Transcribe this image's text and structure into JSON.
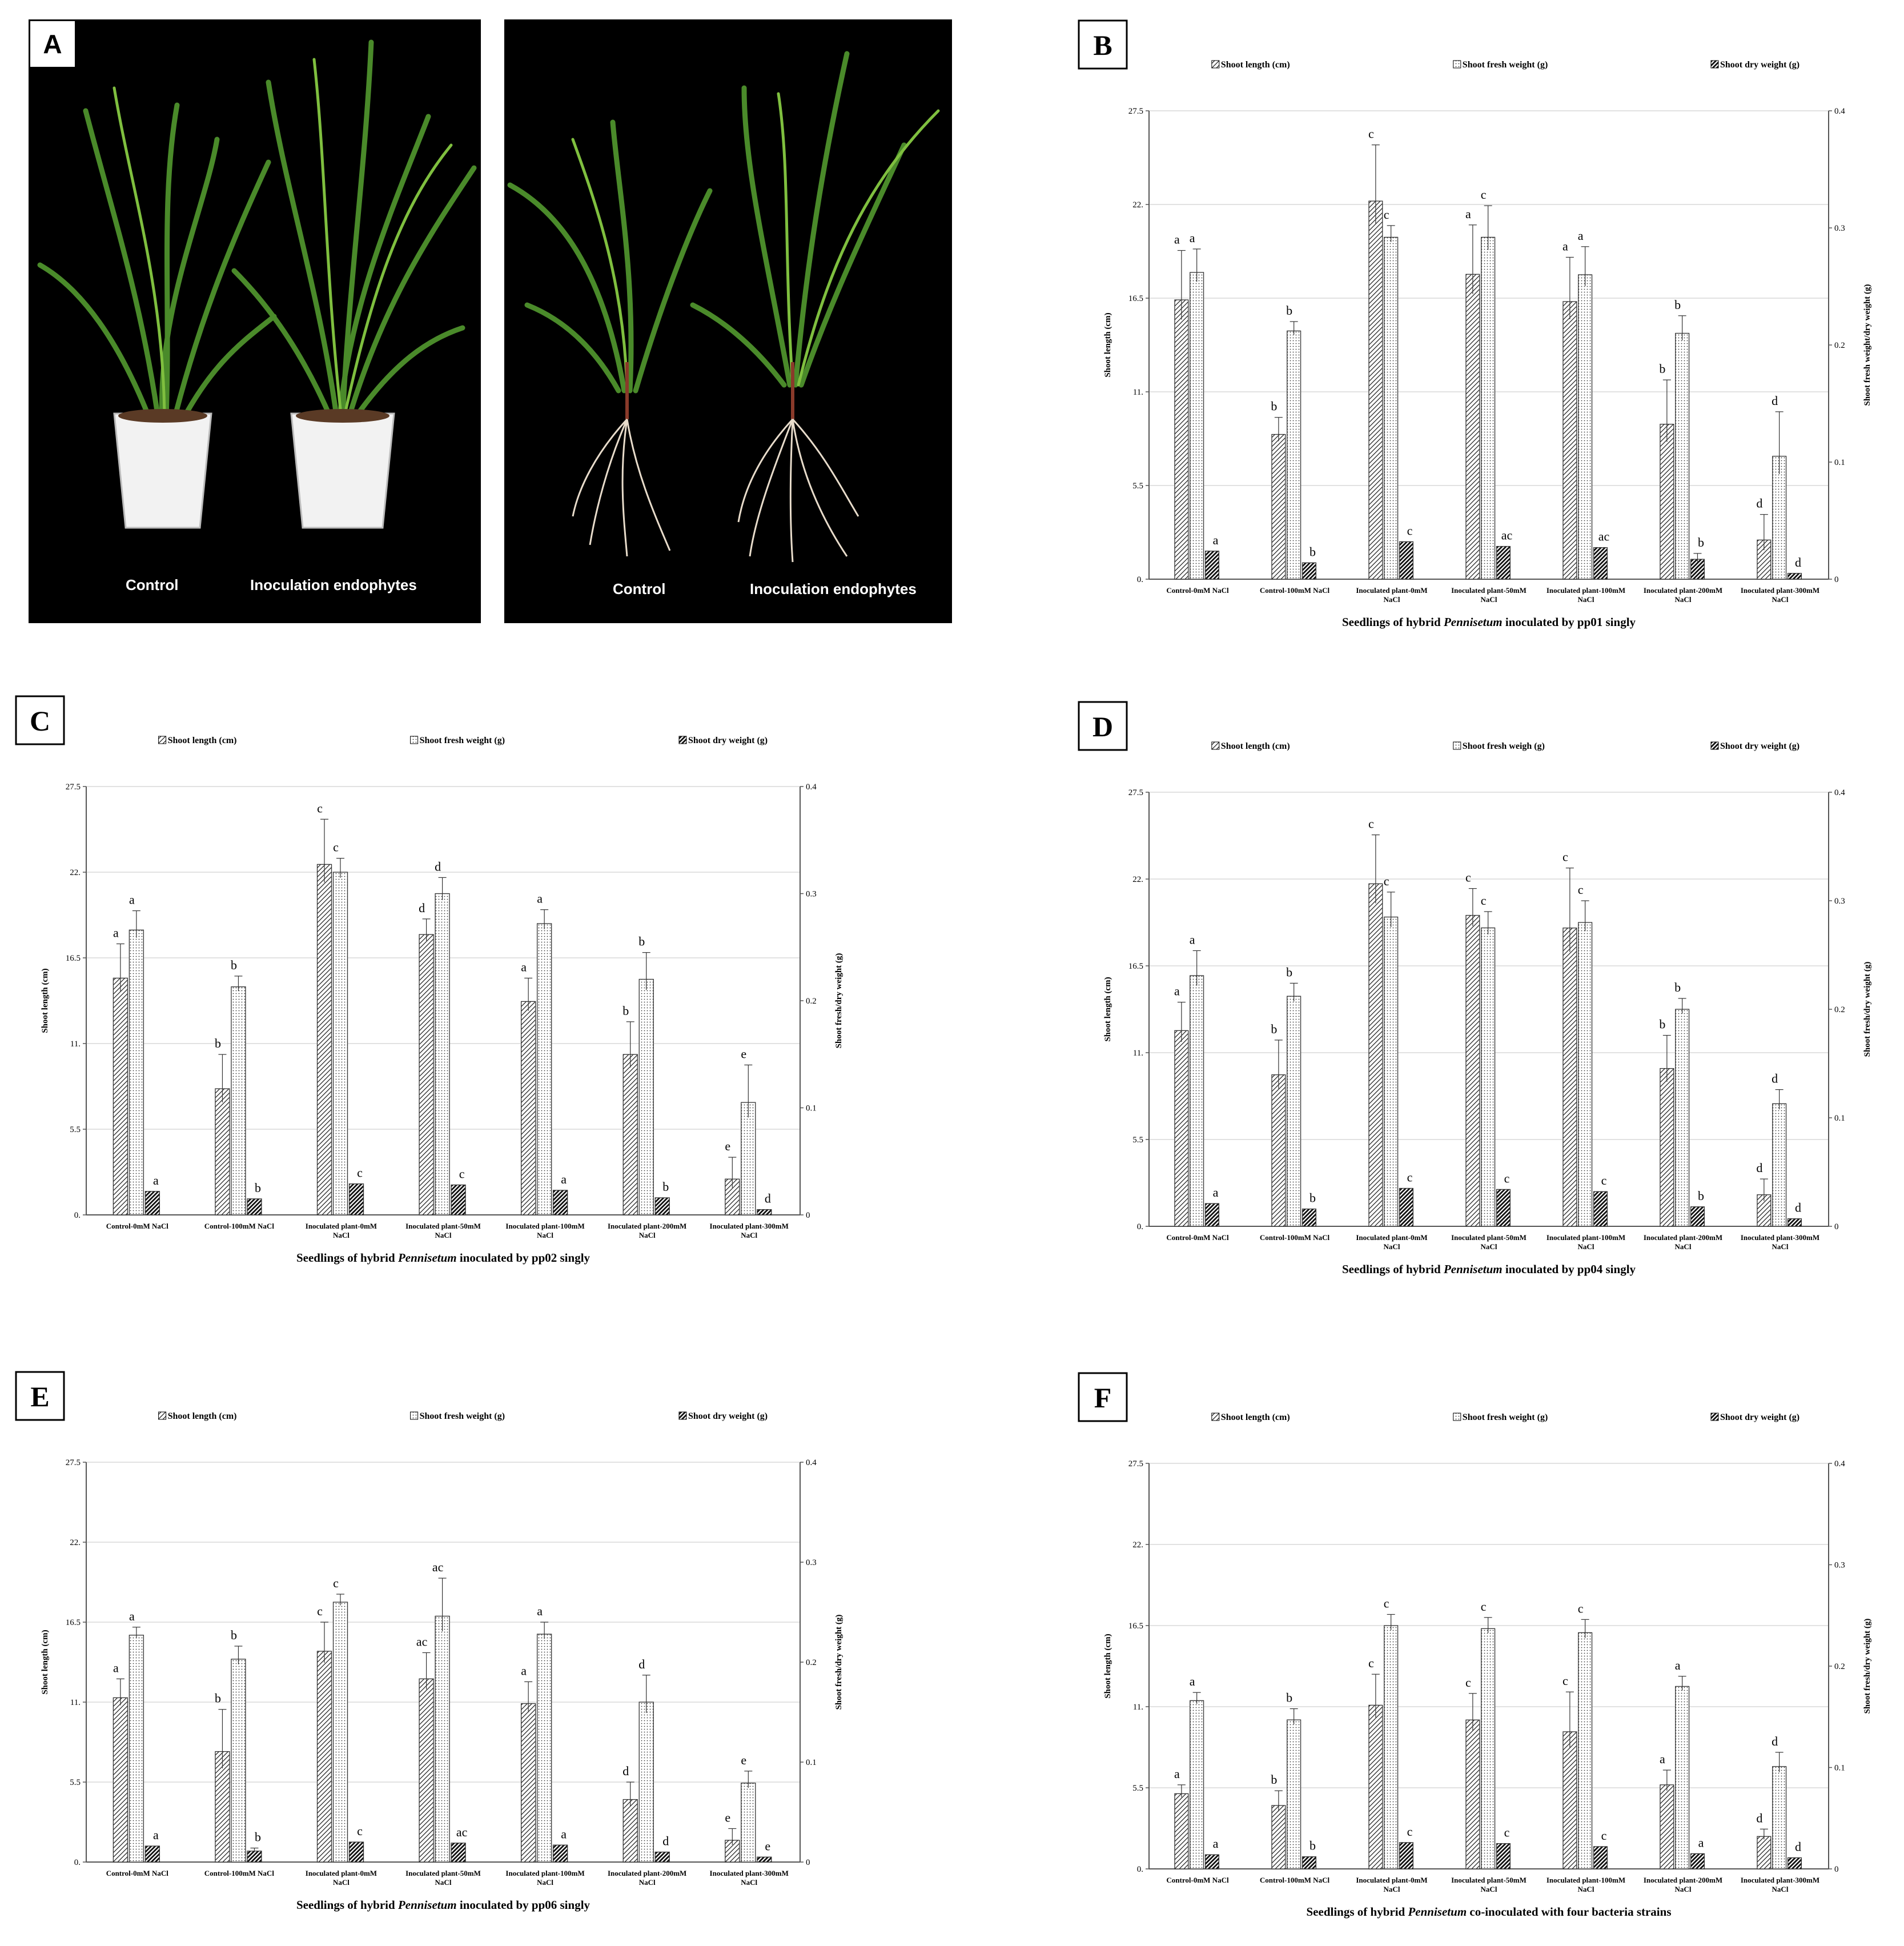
{
  "panel_a": {
    "letter": "A",
    "photo1": {
      "label_left": "Control",
      "label_right": "Inoculation endophytes"
    },
    "photo2": {
      "label_left": "Control",
      "label_right": "Inoculation endophytes"
    }
  },
  "colors": {
    "grid": "#d9d9d9",
    "axis": "#555555",
    "bar_stroke": "#333333",
    "photo_bg": "#000000"
  },
  "chart_data": [
    {
      "panel": "B",
      "type": "bar",
      "legend": [
        "Shoot length (cm)",
        "Shoot fresh weight (g)",
        "Shoot dry weight (g)"
      ],
      "categories": [
        "Control-0mM NaCl",
        "Control-100mM NaCl",
        "Inoculated plant-0mM NaCl",
        "Inoculated plant-50mM NaCl",
        "Inoculated plant-100mM NaCl",
        "Inoculated plant-200mM NaCl",
        "Inoculated plant-300mM NaCl"
      ],
      "ylabel": "Shoot length (cm)",
      "y2label": "Shoot fresh weight/dry weight (g)",
      "yticks": [
        "0.",
        "5.5",
        "11.",
        "16.5",
        "22.",
        "27.5"
      ],
      "y2ticks": [
        "0",
        "0.1",
        "0.2",
        "0.3",
        "0.4"
      ],
      "ylim": [
        0,
        27.5
      ],
      "y2lim": [
        0,
        0.4
      ],
      "xlabel_pre": "Seedlings of hybrid ",
      "xlabel_italic": "Pennisetum",
      "xlabel_post": " inoculated by pp01 singly",
      "series": [
        {
          "name": "Shoot length (cm)",
          "axis": "left",
          "pattern": "diag",
          "values": [
            16.4,
            8.5,
            22.2,
            17.9,
            16.3,
            9.1,
            2.3
          ],
          "errors": [
            2.9,
            1.0,
            3.3,
            2.9,
            2.6,
            2.6,
            1.5
          ],
          "letters": [
            "a",
            "b",
            "c",
            "a",
            "a",
            "b",
            "d"
          ]
        },
        {
          "name": "Shoot fresh weight (g)",
          "axis": "right",
          "pattern": "dots",
          "values": [
            0.262,
            0.212,
            0.292,
            0.292,
            0.26,
            0.21,
            0.105
          ],
          "errors": [
            0.02,
            0.008,
            0.01,
            0.027,
            0.024,
            0.015,
            0.038
          ],
          "letters": [
            "a",
            "b",
            "c",
            "c",
            "a",
            "b",
            "d"
          ]
        },
        {
          "name": "Shoot dry weight (g)",
          "axis": "right",
          "pattern": "bold",
          "values": [
            0.024,
            0.014,
            0.032,
            0.028,
            0.027,
            0.017,
            0.005
          ],
          "errors": [
            0,
            0,
            0,
            0,
            0,
            0.005,
            0
          ],
          "letters": [
            "a",
            "b",
            "c",
            "ac",
            "ac",
            "b",
            "d"
          ]
        }
      ]
    },
    {
      "panel": "C",
      "type": "bar",
      "legend": [
        "Shoot length (cm)",
        "Shoot fresh weight (g)",
        "Shoot dry weight (g)"
      ],
      "categories": [
        "Control-0mM NaCl",
        "Control-100mM NaCl",
        "Inoculated plant-0mM NaCl",
        "Inoculated plant-50mM NaCl",
        "Inoculated plant-100mM NaCl",
        "Inoculated plant-200mM NaCl",
        "Inoculated plant-300mM NaCl"
      ],
      "ylabel": "Shoot length (cm)",
      "y2label": "Shoot fresh/dry weight (g)",
      "yticks": [
        "0.",
        "5.5",
        "11.",
        "16.5",
        "22.",
        "27.5"
      ],
      "y2ticks": [
        "0",
        "0.1",
        "0.2",
        "0.3",
        "0.4"
      ],
      "ylim": [
        0,
        27.5
      ],
      "y2lim": [
        0,
        0.4
      ],
      "xlabel_pre": "Seedlings of hybrid ",
      "xlabel_italic": "Pennisetum",
      "xlabel_post": " inoculated by pp02 singly",
      "series": [
        {
          "name": "Shoot length (cm)",
          "axis": "left",
          "pattern": "diag",
          "values": [
            15.2,
            8.1,
            22.5,
            18.0,
            13.7,
            10.3,
            2.3
          ],
          "errors": [
            2.2,
            2.2,
            2.9,
            1.0,
            1.5,
            2.1,
            1.4
          ],
          "letters": [
            "a",
            "b",
            "c",
            "d",
            "a",
            "b",
            "e"
          ]
        },
        {
          "name": "Shoot fresh weight (g)",
          "axis": "right",
          "pattern": "dots",
          "values": [
            0.266,
            0.213,
            0.32,
            0.3,
            0.272,
            0.22,
            0.105
          ],
          "errors": [
            0.018,
            0.01,
            0.013,
            0.015,
            0.013,
            0.025,
            0.035
          ],
          "letters": [
            "a",
            "b",
            "c",
            "d",
            "a",
            "b",
            "e"
          ]
        },
        {
          "name": "Shoot dry weight (g)",
          "axis": "right",
          "pattern": "bold",
          "values": [
            0.022,
            0.015,
            0.029,
            0.028,
            0.023,
            0.016,
            0.005
          ],
          "errors": [
            0,
            0,
            0,
            0,
            0,
            0,
            0
          ],
          "letters": [
            "a",
            "b",
            "c",
            "c",
            "a",
            "b",
            "d"
          ]
        }
      ]
    },
    {
      "panel": "D",
      "type": "bar",
      "legend": [
        "Shoot length (cm)",
        "Shoot fresh weigh (g)",
        "Shoot dry weight (g)"
      ],
      "categories": [
        "Control-0mM NaCl",
        "Control-100mM NaCl",
        "Inoculated plant-0mM NaCl",
        "Inoculated plant-50mM NaCl",
        "Inoculated plant-100mM NaCl",
        "Inoculated plant-200mM NaCl",
        "Inoculated plant-300mM NaCl"
      ],
      "ylabel": "Shoot length (cm)",
      "y2label": "Shoot fresh/dry weight (g)",
      "yticks": [
        "0.",
        "5.5",
        "11.",
        "16.5",
        "22.",
        "27.5"
      ],
      "y2ticks": [
        "0",
        "0.1",
        "0.2",
        "0.3",
        "0.4"
      ],
      "ylim": [
        0,
        27.5
      ],
      "y2lim": [
        0,
        0.4
      ],
      "xlabel_pre": "Seedlings of hybrid ",
      "xlabel_italic": "Pennisetum",
      "xlabel_post": " inoculated by pp04 singly",
      "series": [
        {
          "name": "Shoot length (cm)",
          "axis": "left",
          "pattern": "diag",
          "values": [
            12.4,
            9.6,
            21.7,
            19.7,
            18.9,
            10.0,
            2.0
          ],
          "errors": [
            1.8,
            2.2,
            3.1,
            1.7,
            3.8,
            2.1,
            1.0
          ],
          "letters": [
            "a",
            "b",
            "c",
            "c",
            "c",
            "b",
            "d"
          ]
        },
        {
          "name": "Shoot fresh weight (g)",
          "axis": "right",
          "pattern": "dots",
          "values": [
            0.231,
            0.212,
            0.285,
            0.275,
            0.28,
            0.2,
            0.113
          ],
          "errors": [
            0.023,
            0.012,
            0.023,
            0.015,
            0.02,
            0.01,
            0.013
          ],
          "letters": [
            "a",
            "b",
            "c",
            "c",
            "c",
            "b",
            "d"
          ]
        },
        {
          "name": "Shoot dry weight (g)",
          "axis": "right",
          "pattern": "bold",
          "values": [
            0.021,
            0.016,
            0.035,
            0.034,
            0.032,
            0.018,
            0.007
          ],
          "errors": [
            0,
            0,
            0,
            0,
            0,
            0,
            0
          ],
          "letters": [
            "a",
            "b",
            "c",
            "c",
            "c",
            "b",
            "d"
          ]
        }
      ]
    },
    {
      "panel": "E",
      "type": "bar",
      "legend": [
        "Shoot length (cm)",
        "Shoot fresh weight (g)",
        "Shoot dry weight (g)"
      ],
      "categories": [
        "Control-0mM NaCl",
        "Control-100mM NaCl",
        "Inoculated plant-0mM NaCl",
        "Inoculated plant-50mM NaCl",
        "Inoculated plant-100mM NaCl",
        "Inoculated plant-200mM NaCl",
        "Inoculated plant-300mM NaCl"
      ],
      "ylabel": "Shoot length (cm)",
      "y2label": "Shoot fresh/dry weight (g)",
      "yticks": [
        "0.",
        "5.5",
        "11.",
        "16.5",
        "22.",
        "27.5"
      ],
      "y2ticks": [
        "0",
        "0.1",
        "0.2",
        "0.3",
        "0.4"
      ],
      "ylim": [
        0,
        27.5
      ],
      "y2lim": [
        0,
        0.4
      ],
      "xlabel_pre": "Seedlings of hybrid ",
      "xlabel_italic": "Pennisetum",
      "xlabel_post": " inoculated by pp06 singly",
      "series": [
        {
          "name": "Shoot length (cm)",
          "axis": "left",
          "pattern": "diag",
          "values": [
            11.3,
            7.6,
            14.5,
            12.6,
            10.9,
            4.3,
            1.5
          ],
          "errors": [
            1.3,
            2.9,
            2.0,
            1.8,
            1.5,
            1.2,
            0.8
          ],
          "letters": [
            "a",
            "b",
            "c",
            "ac",
            "a",
            "d",
            "e"
          ]
        },
        {
          "name": "Shoot fresh weight (g)",
          "axis": "right",
          "pattern": "dots",
          "values": [
            0.227,
            0.203,
            0.26,
            0.246,
            0.228,
            0.16,
            0.079
          ],
          "errors": [
            0.008,
            0.013,
            0.008,
            0.038,
            0.012,
            0.027,
            0.012
          ],
          "letters": [
            "a",
            "b",
            "c",
            "ac",
            "a",
            "d",
            "e"
          ]
        },
        {
          "name": "Shoot dry weight (g)",
          "axis": "right",
          "pattern": "bold",
          "values": [
            0.016,
            0.011,
            0.02,
            0.019,
            0.017,
            0.01,
            0.005
          ],
          "errors": [
            0,
            0.003,
            0,
            0,
            0,
            0,
            0
          ],
          "letters": [
            "a",
            "b",
            "c",
            "ac",
            "a",
            "d",
            "e"
          ]
        }
      ]
    },
    {
      "panel": "F",
      "type": "bar",
      "legend": [
        "Shoot length (cm)",
        "Shoot fresh weight (g)",
        "Shoot dry weight (g)"
      ],
      "categories": [
        "Control-0mM NaCl",
        "Control-100mM NaCl",
        "Inoculated plant-0mM NaCl",
        "Inoculated plant-50mM NaCl",
        "Inoculated plant-100mM NaCl",
        "Inoculated plant-200mM NaCl",
        "Inoculated plant-300mM NaCl"
      ],
      "ylabel": "Shoot length (cm)",
      "y2label": "Shoot fresh/dry weight (g)",
      "yticks": [
        "0.",
        "5.5",
        "11.",
        "16.5",
        "22.",
        "27.5"
      ],
      "y2ticks": [
        "0",
        "0.1",
        "0.2",
        "0.3",
        "0.4"
      ],
      "ylim": [
        0,
        27.5
      ],
      "y2lim": [
        0,
        0.4
      ],
      "xlabel_pre": "Seedlings of hybrid ",
      "xlabel_italic": "Pennisetum",
      "xlabel_post": " co-inoculated with four bacteria strains",
      "series": [
        {
          "name": "Shoot length (cm)",
          "axis": "left",
          "pattern": "diag",
          "values": [
            5.1,
            4.3,
            11.1,
            10.1,
            9.3,
            5.7,
            2.2
          ],
          "errors": [
            0.6,
            1.0,
            2.1,
            1.8,
            2.7,
            1.0,
            0.5
          ],
          "letters": [
            "a",
            "b",
            "c",
            "c",
            "c",
            "a",
            "d"
          ]
        },
        {
          "name": "Shoot fresh weight (g)",
          "axis": "right",
          "pattern": "dots",
          "values": [
            0.166,
            0.147,
            0.24,
            0.237,
            0.233,
            0.18,
            0.101
          ],
          "errors": [
            0.008,
            0.011,
            0.011,
            0.011,
            0.013,
            0.01,
            0.014
          ],
          "letters": [
            "a",
            "b",
            "c",
            "c",
            "c",
            "a",
            "d"
          ]
        },
        {
          "name": "Shoot dry weight (g)",
          "axis": "right",
          "pattern": "bold",
          "values": [
            0.014,
            0.012,
            0.026,
            0.025,
            0.022,
            0.015,
            0.011
          ],
          "errors": [
            0,
            0,
            0,
            0,
            0,
            0,
            0
          ],
          "letters": [
            "a",
            "b",
            "c",
            "c",
            "c",
            "a",
            "d"
          ]
        }
      ]
    }
  ]
}
